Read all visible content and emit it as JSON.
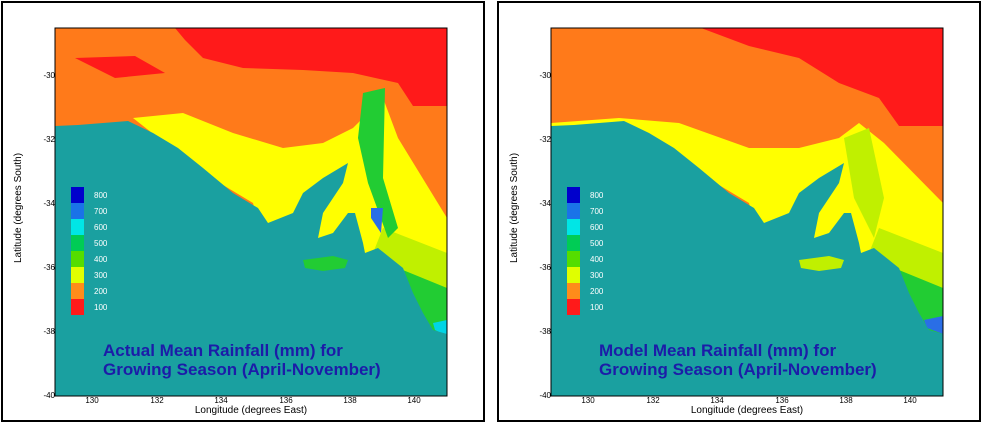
{
  "maps": [
    {
      "caption_line1": "Actual Mean Rainfall (mm) for",
      "caption_line2": "Growing Season (April-November)",
      "variant": "actual"
    },
    {
      "caption_line1": "Model Mean Rainfall (mm) for",
      "caption_line2": "Growing Season (April-November)",
      "variant": "model"
    }
  ],
  "axes": {
    "xlabel": "Longitude (degrees East)",
    "ylabel": "Latitude (degrees South)",
    "xticks": [
      "130",
      "132",
      "134",
      "136",
      "138",
      "140"
    ],
    "yticks": [
      "-30",
      "-32",
      "-34",
      "-36",
      "-38",
      "-40"
    ]
  },
  "legend": {
    "labels": [
      "800",
      "700",
      "600",
      "500",
      "400",
      "300",
      "200",
      "100"
    ],
    "colors": [
      "#0000cc",
      "#1a73e8",
      "#00e6e6",
      "#00cc55",
      "#55dd00",
      "#e0ff00",
      "#ff8c1a",
      "#ff1a1a"
    ]
  },
  "colors": {
    "ocean": "#1aa0a0",
    "red": "#ff1a1a",
    "orange": "#ff7a1a",
    "yellow": "#ffff00",
    "yellowgreen": "#c0f000",
    "green": "#22cc33",
    "cyan": "#00d5e6",
    "blue": "#2a6ee6"
  }
}
